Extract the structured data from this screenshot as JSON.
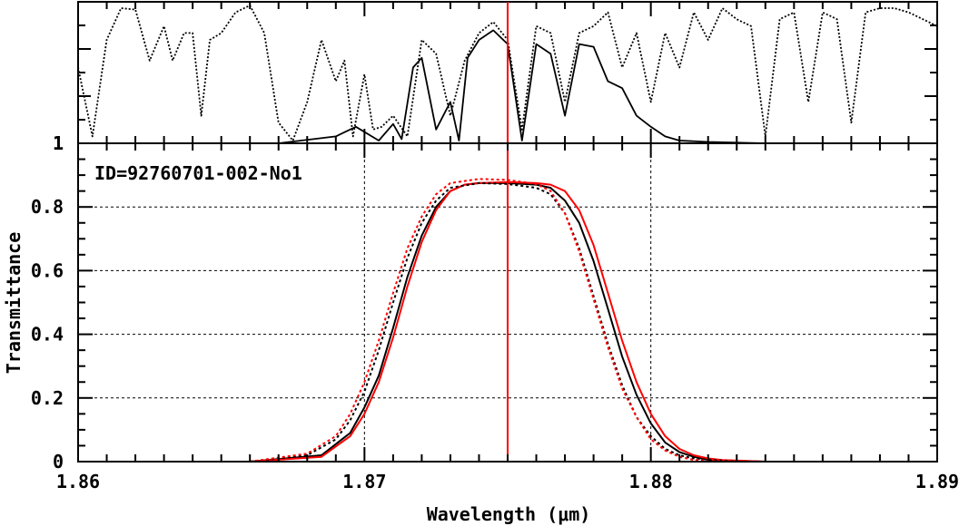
{
  "chart_data": {
    "type": "line",
    "annotation": "ID=92760701-002-No1",
    "xlabel": "Wavelength (μm)",
    "ylabel": "Transmittance",
    "xlim": [
      1.86,
      1.89
    ],
    "ylim": [
      0,
      1
    ],
    "x_ticks": [
      "1.86",
      "1.87",
      "1.88",
      "1.89"
    ],
    "y_ticks": [
      "0",
      "0.2",
      "0.4",
      "0.6",
      "0.8",
      "1"
    ],
    "grid": true,
    "center_line_x": 1.875,
    "center_line_color": "#ff0000",
    "series": [
      {
        "style": "solid",
        "color": "#000000",
        "x": [
          1.862,
          1.866,
          1.8685,
          1.8695,
          1.87,
          1.8705,
          1.871,
          1.8715,
          1.872,
          1.8725,
          1.873,
          1.8735,
          1.874,
          1.875,
          1.876,
          1.8765,
          1.877,
          1.8775,
          1.878,
          1.8785,
          1.879,
          1.8795,
          1.88,
          1.8805,
          1.881,
          1.8815,
          1.882,
          1.884,
          1.888
        ],
        "y": [
          0,
          0,
          0.02,
          0.09,
          0.17,
          0.27,
          0.42,
          0.58,
          0.71,
          0.8,
          0.85,
          0.87,
          0.875,
          0.875,
          0.87,
          0.86,
          0.82,
          0.75,
          0.63,
          0.48,
          0.33,
          0.21,
          0.12,
          0.06,
          0.03,
          0.015,
          0.005,
          0,
          0
        ]
      },
      {
        "style": "solid",
        "color": "#ff0000",
        "x": [
          1.862,
          1.866,
          1.8685,
          1.8695,
          1.87,
          1.8705,
          1.871,
          1.8715,
          1.872,
          1.8725,
          1.873,
          1.8735,
          1.874,
          1.875,
          1.876,
          1.8765,
          1.877,
          1.8775,
          1.878,
          1.8785,
          1.879,
          1.8795,
          1.88,
          1.8805,
          1.881,
          1.8815,
          1.882,
          1.8825,
          1.884,
          1.888
        ],
        "y": [
          0,
          0,
          0.015,
          0.08,
          0.15,
          0.25,
          0.39,
          0.55,
          0.69,
          0.79,
          0.85,
          0.87,
          0.875,
          0.878,
          0.875,
          0.87,
          0.85,
          0.79,
          0.68,
          0.53,
          0.38,
          0.25,
          0.15,
          0.08,
          0.04,
          0.02,
          0.01,
          0.005,
          0,
          0
        ]
      },
      {
        "style": "dotted",
        "color": "#000000",
        "x": [
          1.862,
          1.866,
          1.868,
          1.869,
          1.8695,
          1.87,
          1.8705,
          1.871,
          1.8715,
          1.872,
          1.8725,
          1.873,
          1.874,
          1.875,
          1.876,
          1.8765,
          1.877,
          1.8775,
          1.878,
          1.8785,
          1.879,
          1.8795,
          1.88,
          1.8805,
          1.881,
          1.8815,
          1.883,
          1.888
        ],
        "y": [
          0,
          0,
          0.02,
          0.07,
          0.13,
          0.22,
          0.35,
          0.5,
          0.64,
          0.75,
          0.82,
          0.86,
          0.875,
          0.872,
          0.86,
          0.84,
          0.78,
          0.67,
          0.52,
          0.37,
          0.24,
          0.14,
          0.08,
          0.04,
          0.02,
          0.01,
          0,
          0
        ]
      },
      {
        "style": "dotted",
        "color": "#ff0000",
        "x": [
          1.862,
          1.866,
          1.868,
          1.869,
          1.8695,
          1.87,
          1.8705,
          1.871,
          1.8715,
          1.872,
          1.8725,
          1.873,
          1.874,
          1.875,
          1.876,
          1.8765,
          1.877,
          1.8775,
          1.878,
          1.8785,
          1.879,
          1.8795,
          1.88,
          1.8805,
          1.881,
          1.8815,
          1.883,
          1.888
        ],
        "y": [
          0,
          0,
          0.025,
          0.08,
          0.15,
          0.25,
          0.38,
          0.53,
          0.67,
          0.77,
          0.84,
          0.875,
          0.888,
          0.885,
          0.872,
          0.85,
          0.78,
          0.66,
          0.51,
          0.36,
          0.23,
          0.14,
          0.07,
          0.035,
          0.015,
          0.005,
          0,
          0
        ]
      }
    ],
    "atmosphere_panel": {
      "series": [
        {
          "style": "dotted",
          "color": "#000000",
          "x": [
            1.86,
            1.8605,
            1.861,
            1.8615,
            1.862,
            1.8625,
            1.863,
            1.8633,
            1.8637,
            1.864,
            1.8643,
            1.8646,
            1.865,
            1.8655,
            1.866,
            1.8665,
            1.867,
            1.8675,
            1.868,
            1.8685,
            1.869,
            1.8693,
            1.8696,
            1.87,
            1.8703,
            1.8706,
            1.871,
            1.8715,
            1.872,
            1.8725,
            1.873,
            1.8735,
            1.874,
            1.8745,
            1.875,
            1.8755,
            1.876,
            1.8765,
            1.877,
            1.8775,
            1.878,
            1.8785,
            1.879,
            1.8795,
            1.88,
            1.8805,
            1.881,
            1.8815,
            1.882,
            1.8825,
            1.883,
            1.8835,
            1.884,
            1.8845,
            1.885,
            1.8855,
            1.886,
            1.8865,
            1.887,
            1.8875,
            1.888,
            1.8885,
            1.889,
            1.8895,
            1.89
          ],
          "y": [
            0.55,
            0.05,
            0.75,
            0.98,
            0.97,
            0.6,
            0.85,
            0.6,
            0.8,
            0.8,
            0.2,
            0.75,
            0.8,
            0.95,
            1.0,
            0.8,
            0.15,
            0.02,
            0.3,
            0.75,
            0.45,
            0.6,
            0.05,
            0.5,
            0.1,
            0.12,
            0.2,
            0.05,
            0.75,
            0.65,
            0.2,
            0.6,
            0.8,
            0.88,
            0.75,
            0.1,
            0.85,
            0.8,
            0.3,
            0.8,
            0.85,
            0.95,
            0.55,
            0.8,
            0.3,
            0.8,
            0.55,
            0.95,
            0.75,
            0.98,
            0.9,
            0.85,
            0.05,
            0.9,
            0.95,
            0.3,
            0.95,
            0.9,
            0.15,
            0.95,
            0.98,
            0.98,
            0.95,
            0.9,
            0.85
          ]
        },
        {
          "style": "solid",
          "color": "#000000",
          "x": [
            1.86,
            1.867,
            1.869,
            1.8697,
            1.8705,
            1.871,
            1.8713,
            1.8717,
            1.872,
            1.8725,
            1.873,
            1.8733,
            1.8736,
            1.874,
            1.8745,
            1.875,
            1.8755,
            1.876,
            1.8765,
            1.877,
            1.8775,
            1.878,
            1.8785,
            1.879,
            1.8795,
            1.88,
            1.8805,
            1.881,
            1.882,
            1.884,
            1.89
          ],
          "y": [
            0,
            0,
            0.05,
            0.12,
            0.02,
            0.14,
            0.03,
            0.55,
            0.62,
            0.1,
            0.3,
            0.02,
            0.62,
            0.75,
            0.82,
            0.72,
            0.02,
            0.72,
            0.65,
            0.2,
            0.72,
            0.7,
            0.45,
            0.4,
            0.2,
            0.12,
            0.05,
            0.02,
            0.01,
            0,
            0
          ]
        }
      ]
    }
  }
}
